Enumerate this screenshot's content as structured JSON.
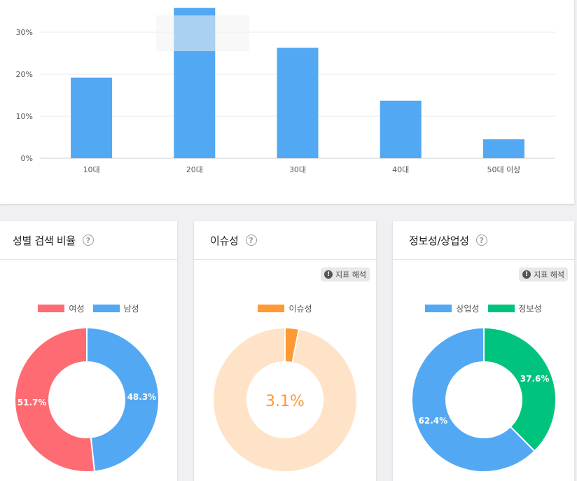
{
  "colors": {
    "bar": "#52a8f2",
    "female": "#ff6b72",
    "male": "#52a8f2",
    "issue": "#ff9933",
    "issue_rest": "#ffe3c8",
    "commercial": "#52a8f2",
    "informational": "#00c47d",
    "grid": "#e8e8e8",
    "axis": "#cccccc"
  },
  "chart_data": [
    {
      "type": "bar",
      "title": "",
      "categories": [
        "10대",
        "20대",
        "30대",
        "40대",
        "50대 이상"
      ],
      "values": [
        19.2,
        35.8,
        26.3,
        13.7,
        4.5
      ],
      "yticks": [
        "0%",
        "10%",
        "20%",
        "30%"
      ],
      "ylim": [
        0,
        38
      ],
      "grid": true
    },
    {
      "type": "pie",
      "title": "성별 검색 비율",
      "legend": [
        "여성",
        "남성"
      ],
      "values": [
        51.7,
        48.3
      ],
      "labels": [
        "51.7%",
        "48.3%"
      ]
    },
    {
      "type": "pie",
      "title": "이슈성",
      "legend": [
        "이슈성"
      ],
      "values": [
        3.1,
        96.9
      ],
      "center_label": "3.1%"
    },
    {
      "type": "pie",
      "title": "정보성/상업성",
      "legend": [
        "상업성",
        "정보성"
      ],
      "values": [
        62.4,
        37.6
      ],
      "labels": [
        "62.4%",
        "37.6%"
      ]
    }
  ],
  "cards": {
    "gender": {
      "title": "성별 검색 비율"
    },
    "issue": {
      "title": "이슈성",
      "info_label": "지표 해석"
    },
    "intent": {
      "title": "정보성/상업성",
      "info_label": "지표 해석"
    }
  },
  "icons": {
    "help": "?",
    "warn": "!"
  }
}
